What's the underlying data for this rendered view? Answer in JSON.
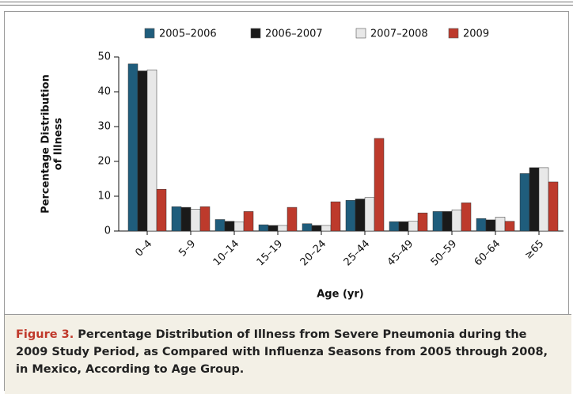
{
  "chart_data": {
    "type": "bar",
    "categories": [
      "0–4",
      "5–9",
      "10–14",
      "15–19",
      "20–24",
      "25–44",
      "45–49",
      "50–59",
      "60–64",
      "≥65"
    ],
    "series": [
      {
        "name": "2005–2006",
        "color": "#1f5d7c",
        "values": [
          48,
          7,
          3.3,
          1.8,
          2.1,
          8.8,
          2.7,
          5.6,
          3.6,
          16.5
        ]
      },
      {
        "name": "2006–2007",
        "color": "#1a1a1a",
        "values": [
          46,
          6.8,
          2.8,
          1.6,
          1.6,
          9.2,
          2.7,
          5.6,
          3.2,
          18.2
        ]
      },
      {
        "name": "2007–2008",
        "color": "#e8e8e8",
        "values": [
          46.3,
          6.3,
          2.6,
          1.6,
          1.6,
          9.6,
          2.8,
          6.1,
          4.0,
          18.2
        ]
      },
      {
        "name": "2009",
        "color": "#bd3a2c",
        "values": [
          12,
          7,
          5.6,
          6.8,
          8.4,
          26.6,
          5.2,
          8.1,
          2.8,
          14.1
        ]
      }
    ],
    "y_label": [
      "Percentage Distribution",
      "of Illness"
    ],
    "x_label": "Age (yr)",
    "ylim": [
      0,
      50
    ],
    "yticks": [
      0,
      10,
      20,
      30,
      40,
      50
    ],
    "legend": "top",
    "caption_label": "Figure 3.",
    "caption": "Percentage Distribution of Illness from Severe Pneumonia during the 2009 Study Period, as Compared with Influenza Seasons from 2005 through 2008, in Mexico, According to Age Group."
  }
}
